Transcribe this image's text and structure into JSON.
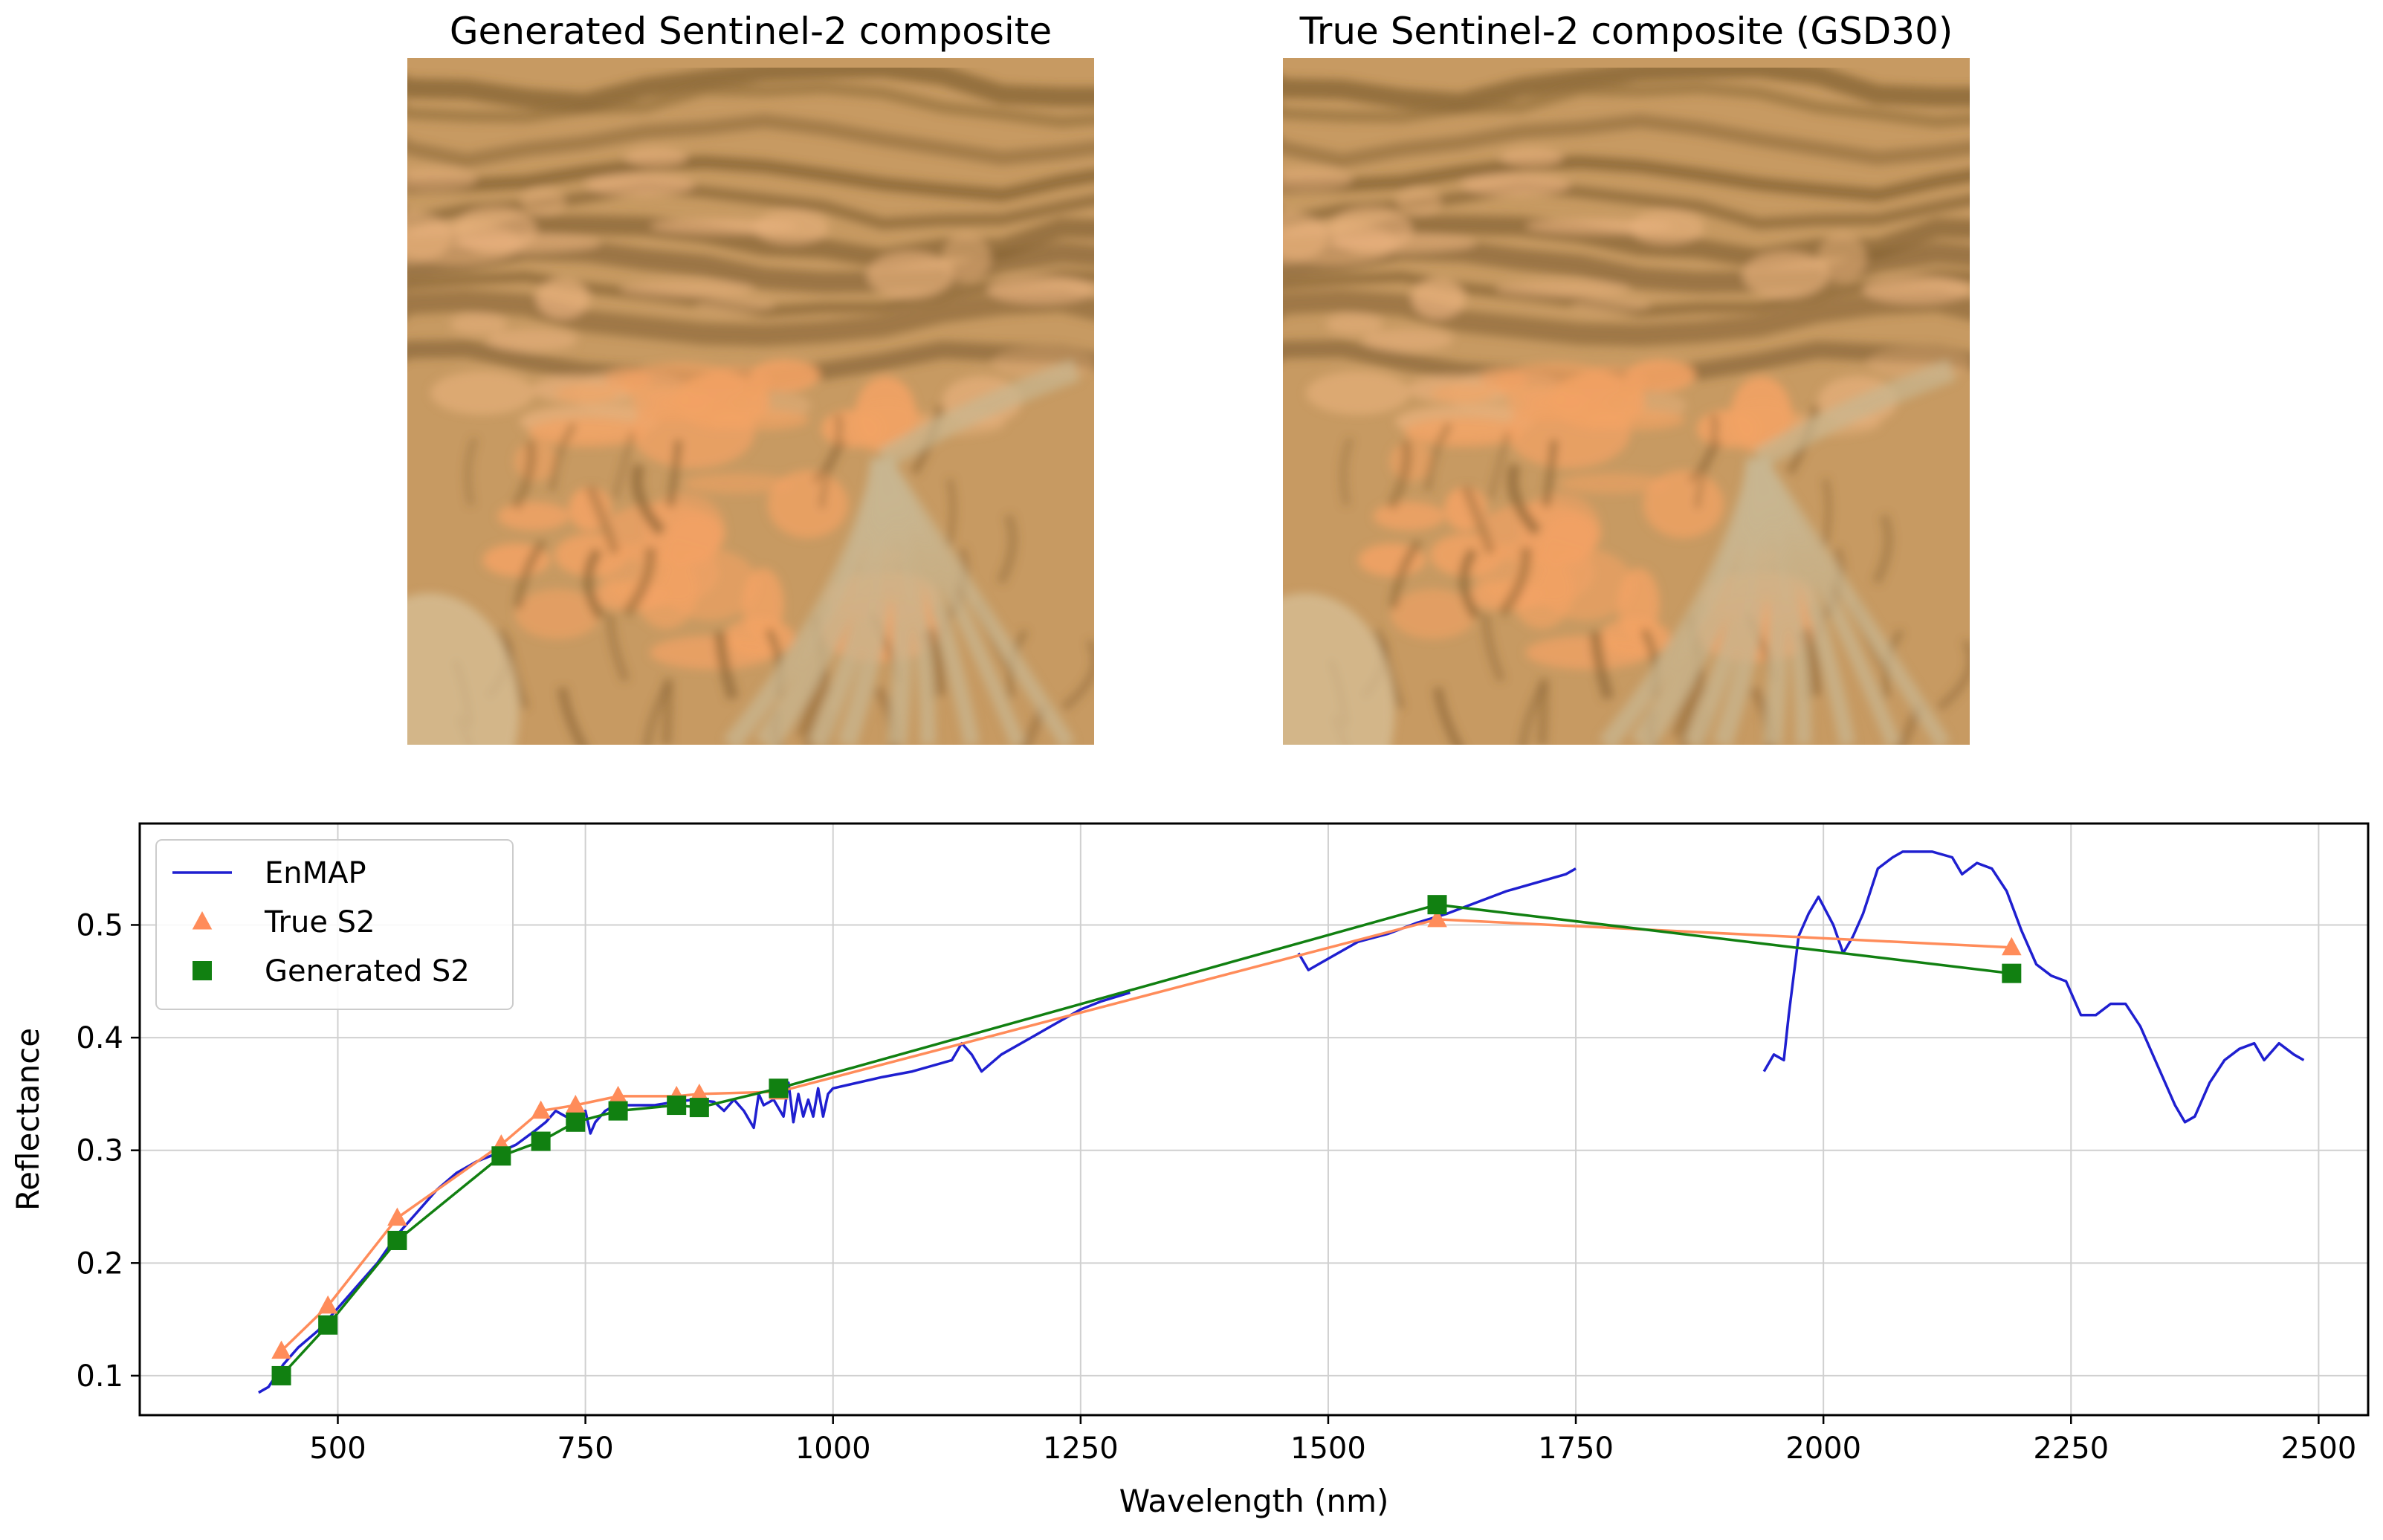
{
  "panels": {
    "left_title": "Generated Sentinel-2 composite",
    "right_title": "True Sentinel-2 composite (GSD30)"
  },
  "colors": {
    "enmap": "#1f1fd0",
    "true_s2": "#ff8c5a",
    "generated_s2": "#118011",
    "terrain_light": "#e9b27e",
    "terrain_mid": "#c79a62",
    "terrain_dark": "#7a5a2c",
    "terrain_orange": "#f2a264",
    "wash": "#c8b690"
  },
  "chart_data": {
    "type": "line",
    "title": "",
    "xlabel": "Wavelength (nm)",
    "ylabel": "Reflectance",
    "xlim": [
      300,
      2550
    ],
    "ylim": [
      0.065,
      0.59
    ],
    "grid": true,
    "legend_position": "top-left",
    "x_ticks": [
      500,
      750,
      1000,
      1250,
      1500,
      1750,
      2000,
      2250,
      2500
    ],
    "x_tick_labels": [
      "500",
      "750",
      "1000",
      "1250",
      "1500",
      "1750",
      "2000",
      "2250",
      "2500"
    ],
    "y_ticks": [
      0.1,
      0.2,
      0.3,
      0.4,
      0.5
    ],
    "y_tick_labels": [
      "0.1",
      "0.2",
      "0.3",
      "0.4",
      "0.5"
    ],
    "legend": [
      "EnMAP",
      "True S2",
      "Generated S2"
    ],
    "series": [
      {
        "name": "EnMAP",
        "kind": "line",
        "segments": [
          [
            [
              420,
              0.085
            ],
            [
              430,
              0.09
            ],
            [
              445,
              0.11
            ],
            [
              460,
              0.125
            ],
            [
              480,
              0.14
            ],
            [
              500,
              0.16
            ],
            [
              520,
              0.18
            ],
            [
              540,
              0.2
            ],
            [
              560,
              0.225
            ],
            [
              580,
              0.245
            ],
            [
              600,
              0.265
            ],
            [
              620,
              0.28
            ],
            [
              640,
              0.29
            ],
            [
              660,
              0.297
            ],
            [
              680,
              0.305
            ],
            [
              700,
              0.318
            ],
            [
              710,
              0.325
            ],
            [
              720,
              0.335
            ],
            [
              730,
              0.33
            ],
            [
              740,
              0.33
            ],
            [
              750,
              0.335
            ],
            [
              755,
              0.315
            ],
            [
              760,
              0.325
            ],
            [
              770,
              0.335
            ],
            [
              780,
              0.34
            ],
            [
              800,
              0.34
            ],
            [
              820,
              0.34
            ],
            [
              840,
              0.343
            ],
            [
              860,
              0.345
            ],
            [
              880,
              0.343
            ],
            [
              890,
              0.335
            ],
            [
              900,
              0.345
            ],
            [
              910,
              0.335
            ],
            [
              920,
              0.32
            ],
            [
              925,
              0.35
            ],
            [
              930,
              0.34
            ],
            [
              940,
              0.345
            ],
            [
              950,
              0.33
            ],
            [
              955,
              0.36
            ],
            [
              960,
              0.325
            ],
            [
              965,
              0.35
            ],
            [
              970,
              0.33
            ],
            [
              975,
              0.345
            ],
            [
              980,
              0.33
            ],
            [
              985,
              0.355
            ],
            [
              990,
              0.33
            ],
            [
              995,
              0.35
            ],
            [
              1000,
              0.355
            ],
            [
              1050,
              0.365
            ],
            [
              1080,
              0.37
            ],
            [
              1100,
              0.375
            ],
            [
              1120,
              0.38
            ],
            [
              1130,
              0.395
            ],
            [
              1140,
              0.385
            ],
            [
              1150,
              0.37
            ],
            [
              1170,
              0.385
            ],
            [
              1200,
              0.4
            ],
            [
              1220,
              0.41
            ],
            [
              1250,
              0.425
            ],
            [
              1270,
              0.432
            ],
            [
              1300,
              0.44
            ]
          ],
          [
            [
              1470,
              0.475
            ],
            [
              1480,
              0.46
            ],
            [
              1500,
              0.47
            ],
            [
              1530,
              0.485
            ],
            [
              1560,
              0.492
            ],
            [
              1590,
              0.502
            ],
            [
              1620,
              0.51
            ],
            [
              1650,
              0.52
            ],
            [
              1680,
              0.53
            ],
            [
              1700,
              0.535
            ],
            [
              1720,
              0.54
            ],
            [
              1740,
              0.545
            ],
            [
              1750,
              0.55
            ]
          ],
          [
            [
              1940,
              0.37
            ],
            [
              1950,
              0.385
            ],
            [
              1960,
              0.38
            ],
            [
              1965,
              0.42
            ],
            [
              1975,
              0.49
            ],
            [
              1985,
              0.51
            ],
            [
              1995,
              0.525
            ],
            [
              2010,
              0.5
            ],
            [
              2020,
              0.475
            ],
            [
              2030,
              0.49
            ],
            [
              2040,
              0.51
            ],
            [
              2055,
              0.55
            ],
            [
              2070,
              0.56
            ],
            [
              2080,
              0.565
            ],
            [
              2090,
              0.565
            ],
            [
              2110,
              0.565
            ],
            [
              2130,
              0.56
            ],
            [
              2140,
              0.545
            ],
            [
              2155,
              0.555
            ],
            [
              2170,
              0.55
            ],
            [
              2185,
              0.53
            ],
            [
              2200,
              0.495
            ],
            [
              2215,
              0.465
            ],
            [
              2230,
              0.455
            ],
            [
              2245,
              0.45
            ],
            [
              2260,
              0.42
            ],
            [
              2275,
              0.42
            ],
            [
              2290,
              0.43
            ],
            [
              2305,
              0.43
            ],
            [
              2320,
              0.41
            ],
            [
              2340,
              0.37
            ],
            [
              2355,
              0.34
            ],
            [
              2365,
              0.325
            ],
            [
              2375,
              0.33
            ],
            [
              2390,
              0.36
            ],
            [
              2405,
              0.38
            ],
            [
              2420,
              0.39
            ],
            [
              2435,
              0.395
            ],
            [
              2445,
              0.38
            ],
            [
              2460,
              0.395
            ],
            [
              2475,
              0.385
            ],
            [
              2485,
              0.38
            ]
          ]
        ]
      },
      {
        "name": "True S2",
        "kind": "line-markers",
        "marker": "triangle",
        "x": [
          443,
          490,
          560,
          665,
          705,
          740,
          783,
          842,
          865,
          945,
          1610,
          2190
        ],
        "y": [
          0.122,
          0.162,
          0.24,
          0.305,
          0.335,
          0.34,
          0.348,
          0.348,
          0.35,
          0.352,
          0.505,
          0.48
        ]
      },
      {
        "name": "Generated S2",
        "kind": "line-markers",
        "marker": "square",
        "x": [
          443,
          490,
          560,
          665,
          705,
          740,
          783,
          842,
          865,
          945,
          1610,
          2190
        ],
        "y": [
          0.1,
          0.145,
          0.22,
          0.295,
          0.308,
          0.325,
          0.335,
          0.34,
          0.338,
          0.355,
          0.518,
          0.457
        ]
      }
    ]
  }
}
